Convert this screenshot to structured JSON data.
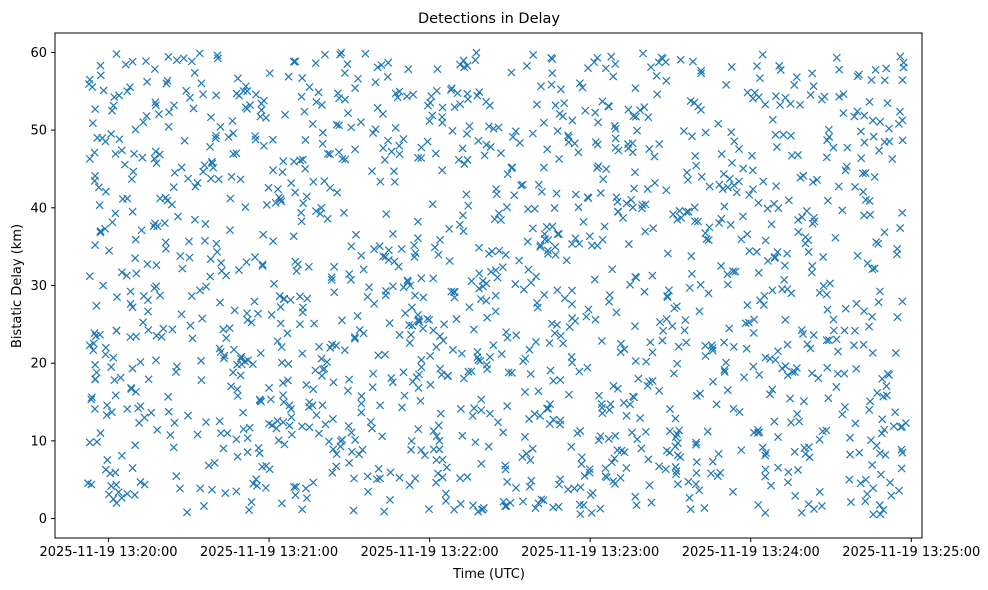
{
  "chart_data": {
    "type": "scatter",
    "title": "Detections in Delay",
    "xlabel": "Time (UTC)",
    "ylabel": "Bistatic Delay (km)",
    "marker": "x",
    "color": "#1f77b4",
    "grid": false,
    "x_unit": "UTC datetime",
    "xlim": [
      "2025-11-19 13:19:40",
      "2025-11-19 13:25:04"
    ],
    "ylim": [
      -2.5,
      62.5
    ],
    "x_ticks": [
      "2025-11-19 13:20:00",
      "2025-11-19 13:21:00",
      "2025-11-19 13:22:00",
      "2025-11-19 13:23:00",
      "2025-11-19 13:24:00",
      "2025-11-19 13:25:00"
    ],
    "y_ticks": [
      0,
      10,
      20,
      30,
      40,
      50,
      60
    ],
    "x_range": [
      "2025-11-19 13:19:52",
      "2025-11-19 13:24:58"
    ],
    "point_count": 1500,
    "points": [
      [
        "2025-11-19 13:19:53",
        56.5
      ],
      [
        "2025-11-19 13:19:53",
        46.3
      ],
      [
        "2025-11-19 13:19:53",
        31.2
      ],
      [
        "2025-11-19 13:19:53",
        22.3
      ],
      [
        "2025-11-19 13:19:53",
        9.8
      ],
      [
        "2025-11-19 13:19:55",
        52.7
      ],
      [
        "2025-11-19 13:19:55",
        44.1
      ],
      [
        "2025-11-19 13:19:55",
        35.2
      ],
      [
        "2025-11-19 13:19:55",
        19.8
      ],
      [
        "2025-11-19 13:19:55",
        17.9
      ],
      [
        "2025-11-19 13:19:57",
        58.3
      ],
      [
        "2025-11-19 13:19:57",
        37.0
      ],
      [
        "2025-11-19 13:19:57",
        11.0
      ],
      [
        "2025-11-19 13:19:58",
        30.0
      ],
      [
        "2025-11-19 13:19:59",
        22.0
      ],
      [
        "2025-11-19 13:19:59",
        6.3
      ],
      [
        "2025-11-19 13:20:01",
        49.5
      ],
      [
        "2025-11-19 13:20:01",
        19.5
      ],
      [
        "2025-11-19 13:20:01",
        4.2
      ],
      [
        "2025-11-19 13:20:03",
        59.8
      ],
      [
        "2025-11-19 13:20:03",
        24.2
      ],
      [
        "2025-11-19 13:20:03",
        2.0
      ],
      [
        "2025-11-19 13:20:05",
        47.4
      ],
      [
        "2025-11-19 13:20:05",
        31.7
      ],
      [
        "2025-11-19 13:20:05",
        8.1
      ],
      [
        "2025-11-19 13:20:07",
        55.0
      ],
      [
        "2025-11-19 13:20:07",
        41.2
      ],
      [
        "2025-11-19 13:20:07",
        14.1
      ],
      [
        "2025-11-19 13:20:07",
        3.2
      ],
      [
        "2025-11-19 13:20:09",
        58.8
      ],
      [
        "2025-11-19 13:20:09",
        39.5
      ],
      [
        "2025-11-19 13:20:09",
        27.2
      ],
      [
        "2025-11-19 13:20:09",
        6.5
      ]
    ]
  }
}
